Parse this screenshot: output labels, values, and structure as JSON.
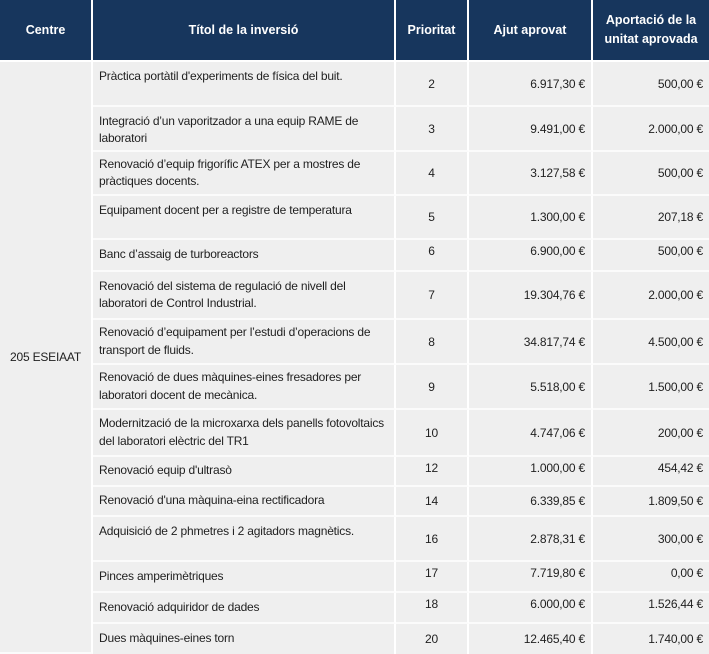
{
  "colors": {
    "header_bg": "#17365D",
    "header_text": "#FFFFFF",
    "centre_column_bg": "#BDD6EE",
    "row_bg": "#EFEFEF",
    "grid_line": "#FFFFFF"
  },
  "table": {
    "columns": [
      "Centre",
      "Títol de la inversió",
      "Prioritat",
      "Ajut aprovat",
      "Aportació de la unitat aprovada"
    ],
    "centre": "205 ESEIAAT",
    "rows": [
      {
        "title": "Pràctica portàtil d'experiments de física del buit.",
        "priority": "2",
        "ajut": "6.917,30 €",
        "aportacio": "500,00 €"
      },
      {
        "title": "Integració d’un vaporitzador a una equip RAME de laboratori",
        "priority": "3",
        "ajut": "9.491,00 €",
        "aportacio": "2.000,00 €"
      },
      {
        "title": "Renovació d’equip frigorífic ATEX per a mostres de pràctiques docents.",
        "priority": "4",
        "ajut": "3.127,58 €",
        "aportacio": "500,00 €"
      },
      {
        "title": "Equipament docent per a registre de temperatura",
        "priority": "5",
        "ajut": "1.300,00 €",
        "aportacio": "207,18 €"
      },
      {
        "title": "Banc d’assaig de turboreactors",
        "priority": "6",
        "ajut": "6.900,00 €",
        "aportacio": "500,00 €"
      },
      {
        "title": "Renovació del sistema de regulació de nivell del laboratori de Control Industrial.",
        "priority": "7",
        "ajut": "19.304,76 €",
        "aportacio": "2.000,00 €"
      },
      {
        "title": "Renovació d’equipament per l’estudi d’operacions de transport de fluids.",
        "priority": "8",
        "ajut": "34.817,74 €",
        "aportacio": "4.500,00 €"
      },
      {
        "title": "Renovació de dues màquines-eines fresadores per laboratori docent de mecànica.",
        "priority": "9",
        "ajut": "5.518,00 €",
        "aportacio": "1.500,00 €"
      },
      {
        "title": "Modernització de la microxarxa dels panells fotovoltaics del laboratori elèctric del TR1",
        "priority": "10",
        "ajut": "4.747,06 €",
        "aportacio": "200,00 €"
      },
      {
        "title": "Renovació equip d'ultrasò",
        "priority": "12",
        "ajut": "1.000,00 €",
        "aportacio": "454,42 €"
      },
      {
        "title": "Renovació d'una màquina-eina rectificadora",
        "priority": "14",
        "ajut": "6.339,85 €",
        "aportacio": "1.809,50 €"
      },
      {
        "title": "Adquisició de 2 phmetres i 2 agitadors magnètics.",
        "priority": "16",
        "ajut": "2.878,31 €",
        "aportacio": "300,00 €"
      },
      {
        "title": "Pinces amperimètriques",
        "priority": "17",
        "ajut": "7.719,80 €",
        "aportacio": "0,00 €"
      },
      {
        "title": "Renovació adquiridor de dades",
        "priority": "18",
        "ajut": "6.000,00 €",
        "aportacio": "1.526,44 €"
      },
      {
        "title": "Dues màquines-eines torn",
        "priority": "20",
        "ajut": "12.465,40 €",
        "aportacio": "1.740,00 €"
      }
    ]
  }
}
